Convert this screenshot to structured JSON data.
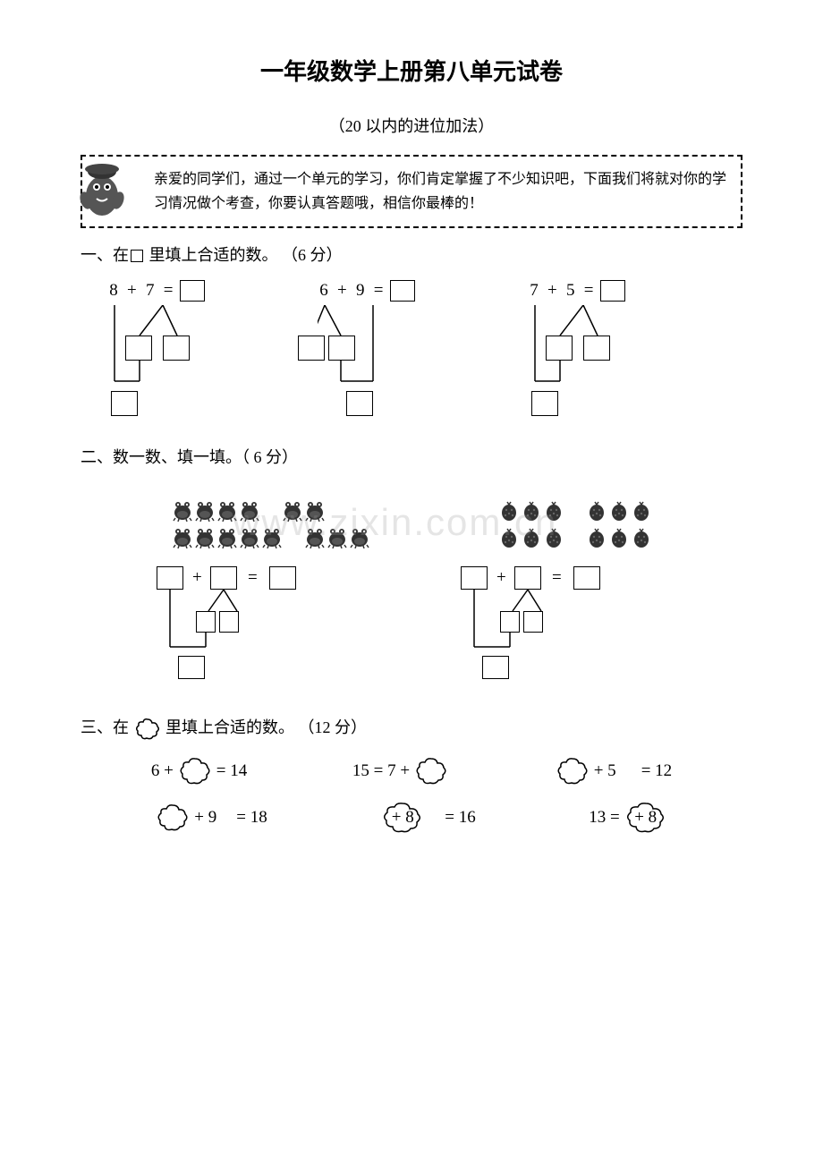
{
  "title": "一年级数学上册第八单元试卷",
  "subtitle": "（20 以内的进位加法）",
  "intro": "亲爱的同学们，通过一个单元的学习，你们肯定掌握了不少知识吧，下面我们将就对你的学习情况做个考查，你要认真答题哦，相信你最棒的！",
  "section1": {
    "heading_prefix": "一、在",
    "heading_suffix": " 里填上合适的数。 （6 分）",
    "problems": [
      {
        "a": "8",
        "op": "+",
        "b": "7",
        "eq": "="
      },
      {
        "a": "6",
        "op": "+",
        "b": "9",
        "eq": "="
      },
      {
        "a": "7",
        "op": "+",
        "b": "5",
        "eq": "="
      }
    ]
  },
  "section2": {
    "heading": "二、数一数、填一填。（  6 分）",
    "left_groups": [
      [
        4,
        2
      ],
      [
        5,
        3
      ]
    ],
    "right_groups": [
      [
        3,
        3
      ],
      [
        3,
        3
      ]
    ]
  },
  "section3": {
    "heading_prefix": "三、在 ",
    "heading_suffix": " 里填上合适的数。 （12 分）",
    "row1": [
      {
        "pre": "6 +",
        "post": "= 14"
      },
      {
        "pre": "15    = 7 +",
        "post": ""
      },
      {
        "pre": "+ 5",
        "post": "= 12",
        "cloud_first": true
      }
    ],
    "row2": [
      {
        "pre": "",
        "mid": "+ 9",
        "post": "= 18",
        "cloud_first": true
      },
      {
        "pre": "",
        "inner": "+ 8",
        "post": "= 16",
        "cloud_wrap": true
      },
      {
        "pre": "13    =",
        "inner": "+ 8",
        "cloud_wrap": true
      }
    ]
  },
  "watermark": "www.zixin.com.cn",
  "colors": {
    "text": "#000000",
    "bg": "#ffffff",
    "border": "#000000",
    "watermark": "rgba(150,150,150,0.25)"
  }
}
